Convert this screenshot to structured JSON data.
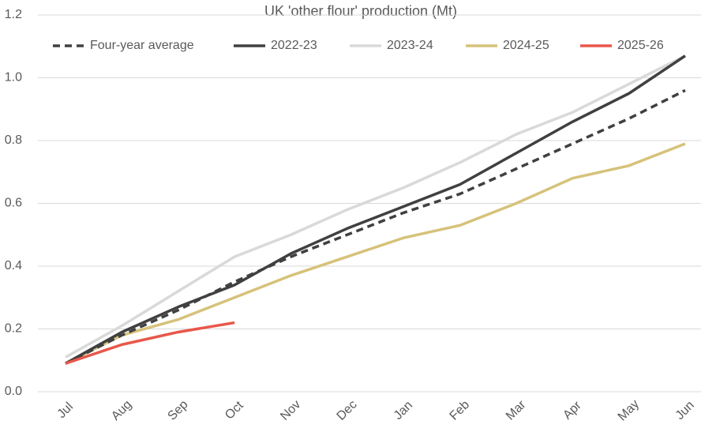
{
  "chart_data": {
    "type": "line",
    "title": "UK 'other flour' production (Mt)",
    "categories": [
      "Jul",
      "Aug",
      "Sep",
      "Oct",
      "Nov",
      "Dec",
      "Jan",
      "Feb",
      "Mar",
      "Apr",
      "May",
      "Jun"
    ],
    "series": [
      {
        "name": "Four-year average",
        "color": "#404040",
        "dashed": true,
        "values": [
          0.09,
          0.18,
          0.26,
          0.35,
          0.43,
          0.5,
          0.57,
          0.63,
          0.71,
          0.79,
          0.87,
          0.96
        ]
      },
      {
        "name": "2022-23",
        "color": "#404040",
        "values": [
          0.09,
          0.19,
          0.27,
          0.34,
          0.44,
          0.52,
          0.59,
          0.66,
          0.76,
          0.86,
          0.95,
          1.07
        ]
      },
      {
        "name": "2023-24",
        "color": "#d9d9d9",
        "values": [
          0.11,
          0.21,
          0.32,
          0.43,
          0.5,
          0.58,
          0.65,
          0.73,
          0.82,
          0.89,
          0.98,
          1.07
        ]
      },
      {
        "name": "2024-25",
        "color": "#d6c27a",
        "values": [
          0.09,
          0.18,
          0.23,
          0.3,
          0.37,
          0.43,
          0.49,
          0.53,
          0.6,
          0.68,
          0.72,
          0.79
        ]
      },
      {
        "name": "2025-26",
        "color": "#e8574a",
        "values": [
          0.09,
          0.15,
          0.19,
          0.22,
          null,
          null,
          null,
          null,
          null,
          null,
          null,
          null
        ]
      }
    ],
    "ylim": [
      0,
      1.2
    ],
    "yticks": [
      {
        "value": 0,
        "label": "0.0"
      },
      0.2,
      0.4,
      0.6,
      0.8,
      {
        "value": 1,
        "label": "1.0"
      },
      1.2
    ],
    "grid": true,
    "legend": "top"
  }
}
